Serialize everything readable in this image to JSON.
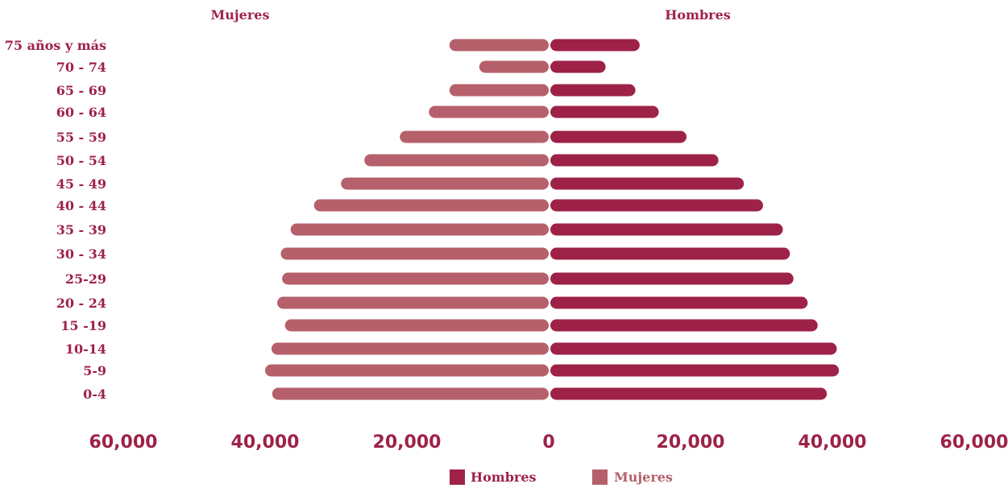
{
  "chart_data": {
    "type": "bar",
    "orientation": "horizontal",
    "layout": "population-pyramid",
    "categories": [
      "75 años y más",
      "70 - 74",
      "65 - 69",
      "60 - 64",
      "55 - 59",
      "50 - 54",
      "45 - 49",
      "40 - 44",
      "35 - 39",
      "30 - 34",
      "25-29",
      "20 - 24",
      "15 -19",
      "10-14",
      "5-9",
      "0-4"
    ],
    "series": [
      {
        "name": "Mujeres",
        "side": "left",
        "color": "#b5606b",
        "values": [
          14000,
          9800,
          14000,
          16900,
          21000,
          26000,
          29300,
          33100,
          36400,
          37800,
          37600,
          38300,
          37200,
          39100,
          40000,
          39000
        ]
      },
      {
        "name": "Hombres",
        "side": "right",
        "color": "#9e2247",
        "values": [
          12600,
          7800,
          12000,
          15300,
          19200,
          23700,
          27300,
          30000,
          32800,
          33800,
          34300,
          36300,
          37700,
          40400,
          40700,
          39000
        ]
      }
    ],
    "side_titles": {
      "left": "Mujeres",
      "right": "Hombres"
    },
    "xticks": [
      "60,000",
      "40,000",
      "20,000",
      "0",
      "20,000",
      "40,000",
      "60,000"
    ],
    "xtick_values": [
      -60000,
      -40000,
      -20000,
      0,
      20000,
      40000,
      60000
    ],
    "xlim": [
      -60000,
      60000
    ],
    "legend": {
      "placement": "bottom-center",
      "items": [
        "Hombres",
        "Mujeres"
      ]
    },
    "grid": false
  },
  "colors": {
    "label": "#9e2247",
    "mujeres": "#b5606b",
    "hombres": "#9e2247"
  }
}
